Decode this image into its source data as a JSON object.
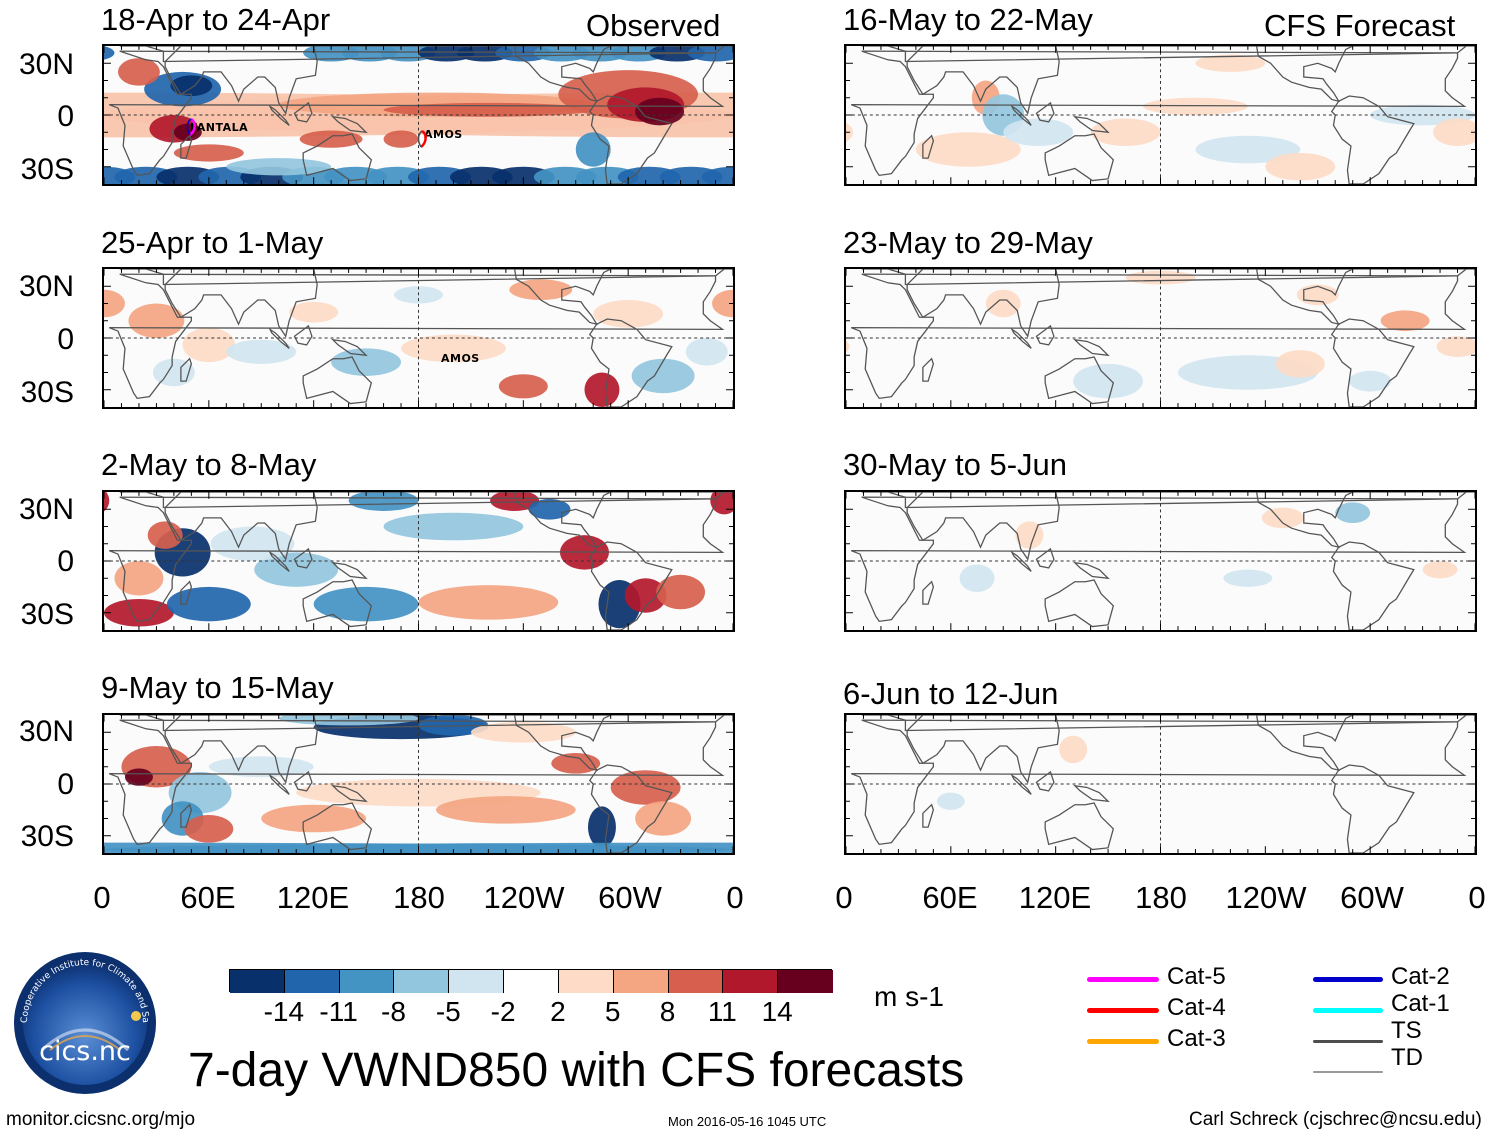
{
  "header": {
    "observed_label": "Observed",
    "forecast_label": "CFS Forecast"
  },
  "observed_panels": [
    {
      "period": "18-Apr to 24-Apr",
      "storms": [
        "FANTALA",
        "AMOS"
      ]
    },
    {
      "period": "25-Apr to 1-May",
      "storms": [
        "AMOS"
      ]
    },
    {
      "period": "2-May to 8-May",
      "storms": []
    },
    {
      "period": "9-May to 15-May",
      "storms": []
    }
  ],
  "forecast_panels": [
    {
      "period": "16-May to 22-May"
    },
    {
      "period": "23-May to 29-May"
    },
    {
      "period": "30-May to 5-Jun"
    },
    {
      "period": "6-Jun to 12-Jun"
    }
  ],
  "axes": {
    "lat_labels": [
      "30N",
      "0",
      "30S"
    ],
    "lon_labels": [
      "0",
      "60E",
      "120E",
      "180",
      "120W",
      "60W",
      "0"
    ]
  },
  "colorbar": {
    "colors": [
      "#08306b",
      "#2166ac",
      "#4393c3",
      "#92c5de",
      "#d1e5f0",
      "#ffffff",
      "#fddbc7",
      "#f4a582",
      "#d6604d",
      "#b2182b",
      "#67001f"
    ],
    "tick_labels": [
      "-14",
      "-11",
      "-8",
      "-5",
      "-2",
      "2",
      "5",
      "8",
      "11",
      "14"
    ],
    "units": "m s-1"
  },
  "legend": {
    "items": [
      {
        "label": "Cat-5",
        "color": "#ff00ff"
      },
      {
        "label": "Cat-4",
        "color": "#ff0000"
      },
      {
        "label": "Cat-3",
        "color": "#ffa500"
      },
      {
        "label": "Cat-2",
        "color": "#0000cd"
      },
      {
        "label": "Cat-1",
        "color": "#00ffff"
      },
      {
        "label": "TS",
        "color": "#4d4d4d"
      },
      {
        "label": "TD",
        "color": "#999999"
      }
    ]
  },
  "logo": {
    "text": "cics.nc",
    "ring_text": "Cooperative Institute for Climate and Satellites"
  },
  "footer": {
    "title": "7-day VWND850 with CFS forecasts",
    "url": "monitor.cicsnc.org/mjo",
    "timestamp": "Mon 2016-05-16 1045 UTC",
    "author": "Carl Schreck (cjschrec@ncsu.edu)"
  }
}
